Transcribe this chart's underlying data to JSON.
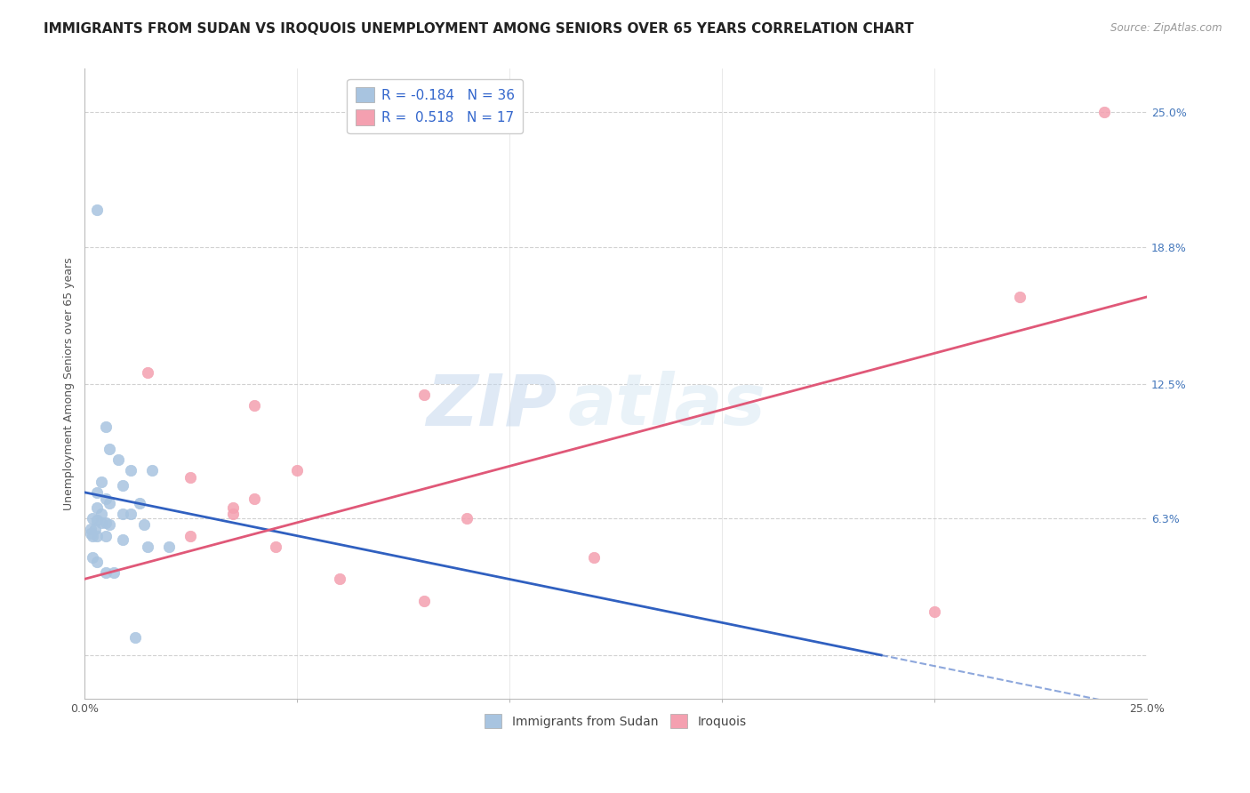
{
  "title": "IMMIGRANTS FROM SUDAN VS IROQUOIS UNEMPLOYMENT AMONG SENIORS OVER 65 YEARS CORRELATION CHART",
  "source": "Source: ZipAtlas.com",
  "ylabel": "Unemployment Among Seniors over 65 years",
  "xlim": [
    0.0,
    25.0
  ],
  "ylim": [
    -2.0,
    27.0
  ],
  "yticks": [
    0.0,
    6.3,
    12.5,
    18.8,
    25.0
  ],
  "ytick_labels": [
    "",
    "6.3%",
    "12.5%",
    "18.8%",
    "25.0%"
  ],
  "legend_blue_R": "R = -0.184",
  "legend_blue_N": "N = 36",
  "legend_pink_R": "R =  0.518",
  "legend_pink_N": "N = 17",
  "blue_label": "Immigrants from Sudan",
  "pink_label": "Iroquois",
  "blue_color": "#a8c4e0",
  "pink_color": "#f4a0b0",
  "blue_line_color": "#3060c0",
  "pink_line_color": "#e05878",
  "blue_scatter": [
    [
      0.3,
      20.5
    ],
    [
      1.2,
      0.8
    ],
    [
      0.5,
      10.5
    ],
    [
      0.6,
      9.5
    ],
    [
      0.8,
      9.0
    ],
    [
      1.1,
      8.5
    ],
    [
      1.6,
      8.5
    ],
    [
      0.4,
      8.0
    ],
    [
      0.9,
      7.8
    ],
    [
      0.3,
      7.5
    ],
    [
      0.5,
      7.2
    ],
    [
      0.6,
      7.0
    ],
    [
      1.3,
      7.0
    ],
    [
      0.3,
      6.8
    ],
    [
      0.4,
      6.5
    ],
    [
      0.9,
      6.5
    ],
    [
      1.1,
      6.5
    ],
    [
      0.2,
      6.3
    ],
    [
      0.3,
      6.2
    ],
    [
      0.4,
      6.1
    ],
    [
      0.5,
      6.1
    ],
    [
      0.6,
      6.0
    ],
    [
      1.4,
      6.0
    ],
    [
      0.15,
      5.8
    ],
    [
      0.25,
      5.8
    ],
    [
      0.2,
      5.5
    ],
    [
      0.3,
      5.5
    ],
    [
      0.5,
      5.5
    ],
    [
      0.9,
      5.3
    ],
    [
      1.5,
      5.0
    ],
    [
      2.0,
      5.0
    ],
    [
      0.2,
      4.5
    ],
    [
      0.3,
      4.3
    ],
    [
      0.5,
      3.8
    ],
    [
      0.7,
      3.8
    ],
    [
      0.15,
      5.6
    ]
  ],
  "pink_scatter": [
    [
      24.0,
      25.0
    ],
    [
      22.0,
      16.5
    ],
    [
      1.5,
      13.0
    ],
    [
      8.0,
      12.0
    ],
    [
      4.0,
      11.5
    ],
    [
      5.0,
      8.5
    ],
    [
      2.5,
      8.2
    ],
    [
      4.0,
      7.2
    ],
    [
      3.5,
      6.8
    ],
    [
      3.5,
      6.5
    ],
    [
      9.0,
      6.3
    ],
    [
      2.5,
      5.5
    ],
    [
      4.5,
      5.0
    ],
    [
      12.0,
      4.5
    ],
    [
      6.0,
      3.5
    ],
    [
      8.0,
      2.5
    ],
    [
      20.0,
      2.0
    ]
  ],
  "blue_trend_x": [
    0.0,
    25.0
  ],
  "blue_trend_y": [
    7.5,
    -2.5
  ],
  "blue_solid_end_x": 18.75,
  "pink_trend_x": [
    0.0,
    25.0
  ],
  "pink_trend_y": [
    3.5,
    16.5
  ],
  "watermark_zip": "ZIP",
  "watermark_atlas": "atlas",
  "background_color": "#ffffff",
  "grid_color": "#cccccc",
  "title_fontsize": 11,
  "tick_fontsize": 9,
  "scatter_size": 80
}
